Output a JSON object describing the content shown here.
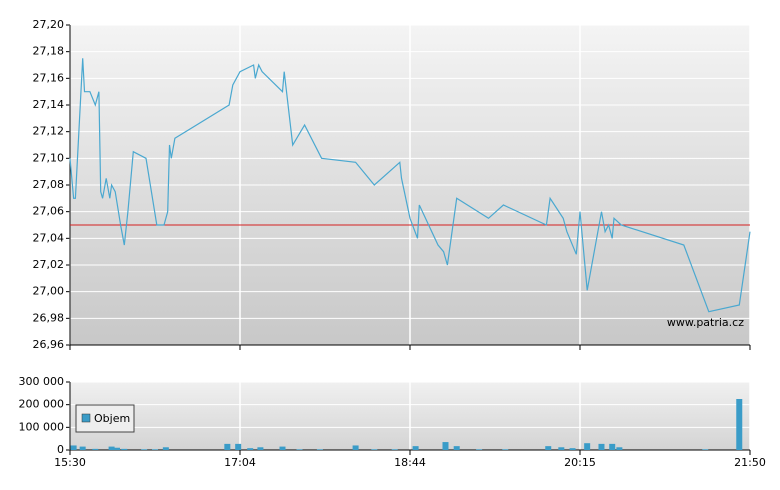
{
  "chart_data": [
    {
      "type": "line",
      "color": "#4aa8d0",
      "grid": true,
      "annotation": "www.patria.cz",
      "reference_line": {
        "value": 27.05,
        "color": "#d42020"
      },
      "x": [
        "15:30",
        "15:32",
        "15:33",
        "15:37",
        "15:38",
        "15:41",
        "15:44",
        "15:46",
        "15:47",
        "15:48",
        "15:50",
        "15:52",
        "15:53",
        "15:55",
        "15:58",
        "16:00",
        "16:02",
        "16:05",
        "16:12",
        "16:18",
        "16:22",
        "16:24",
        "16:25",
        "16:26",
        "16:28",
        "16:58",
        "17:00",
        "17:04",
        "17:12",
        "17:13",
        "17:15",
        "17:17",
        "17:29",
        "17:30",
        "17:35",
        "17:42",
        "17:52",
        "18:12",
        "18:23",
        "18:38",
        "18:39",
        "18:44",
        "18:48",
        "18:49",
        "18:59",
        "19:02",
        "19:04",
        "19:09",
        "19:26",
        "19:34",
        "19:57",
        "19:59",
        "20:06",
        "20:08",
        "20:13",
        "20:15",
        "20:19",
        "20:27",
        "20:29",
        "20:31",
        "20:33",
        "20:34",
        "20:38",
        "21:13",
        "21:27",
        "21:44",
        "21:50"
      ],
      "values": [
        27.1,
        27.07,
        27.07,
        27.175,
        27.15,
        27.15,
        27.14,
        27.15,
        27.075,
        27.07,
        27.085,
        27.07,
        27.08,
        27.075,
        27.05,
        27.035,
        27.06,
        27.105,
        27.1,
        27.05,
        27.05,
        27.06,
        27.11,
        27.1,
        27.115,
        27.14,
        27.155,
        27.165,
        27.17,
        27.16,
        27.17,
        27.165,
        27.15,
        27.165,
        27.11,
        27.125,
        27.1,
        27.097,
        27.08,
        27.097,
        27.085,
        27.055,
        27.04,
        27.065,
        27.035,
        27.03,
        27.02,
        27.07,
        27.055,
        27.065,
        27.05,
        27.07,
        27.055,
        27.045,
        27.028,
        27.06,
        27.001,
        27.06,
        27.045,
        27.05,
        27.04,
        27.055,
        27.05,
        27.035,
        26.985,
        26.99,
        27.045
      ],
      "ylim": [
        26.96,
        27.2
      ],
      "yticks": [
        {
          "value": 26.96,
          "label": "26,96"
        },
        {
          "value": 26.98,
          "label": "26,98"
        },
        {
          "value": 27.0,
          "label": "27,00"
        },
        {
          "value": 27.02,
          "label": "27,02"
        },
        {
          "value": 27.04,
          "label": "27,04"
        },
        {
          "value": 27.06,
          "label": "27,06"
        },
        {
          "value": 27.08,
          "label": "27,08"
        },
        {
          "value": 27.1,
          "label": "27,10"
        },
        {
          "value": 27.12,
          "label": "27,12"
        },
        {
          "value": 27.14,
          "label": "27,14"
        },
        {
          "value": 27.16,
          "label": "27,16"
        },
        {
          "value": 27.18,
          "label": "27,18"
        },
        {
          "value": 27.2,
          "label": "27,20"
        }
      ]
    },
    {
      "type": "bar",
      "grid": true,
      "legend": "upper left",
      "x": [
        "15:32",
        "15:37",
        "15:44",
        "15:53",
        "15:56",
        "16:00",
        "16:11",
        "16:17",
        "16:23",
        "16:57",
        "17:03",
        "17:10",
        "17:16",
        "17:29",
        "17:39",
        "17:51",
        "18:12",
        "18:23",
        "18:35",
        "18:47",
        "19:03",
        "19:09",
        "19:21",
        "19:35",
        "19:58",
        "20:05",
        "20:11",
        "20:19",
        "20:27",
        "20:33",
        "20:37",
        "21:25",
        "21:44"
      ],
      "series": [
        {
          "name": "Objem",
          "color": "#3a9cc8",
          "values": [
            20000,
            15000,
            5000,
            15000,
            10000,
            5000,
            3000,
            3000,
            12000,
            27000,
            27000,
            8000,
            12000,
            15000,
            3000,
            3000,
            20000,
            3000,
            3000,
            17000,
            35000,
            17000,
            3000,
            3000,
            17000,
            12000,
            8000,
            30000,
            27000,
            27000,
            12000,
            3000,
            225000
          ]
        }
      ],
      "xlim": [
        "15:30",
        "21:50"
      ],
      "xticks": [
        "15:30",
        "17:04",
        "18:44",
        "20:15",
        "21:50"
      ],
      "ylim": [
        0,
        300000
      ],
      "yticks": [
        0,
        {
          "value": 100000,
          "label": "100 000"
        },
        {
          "value": 200000,
          "label": "200 000"
        },
        {
          "value": 300000,
          "label": "300 000"
        }
      ]
    }
  ]
}
